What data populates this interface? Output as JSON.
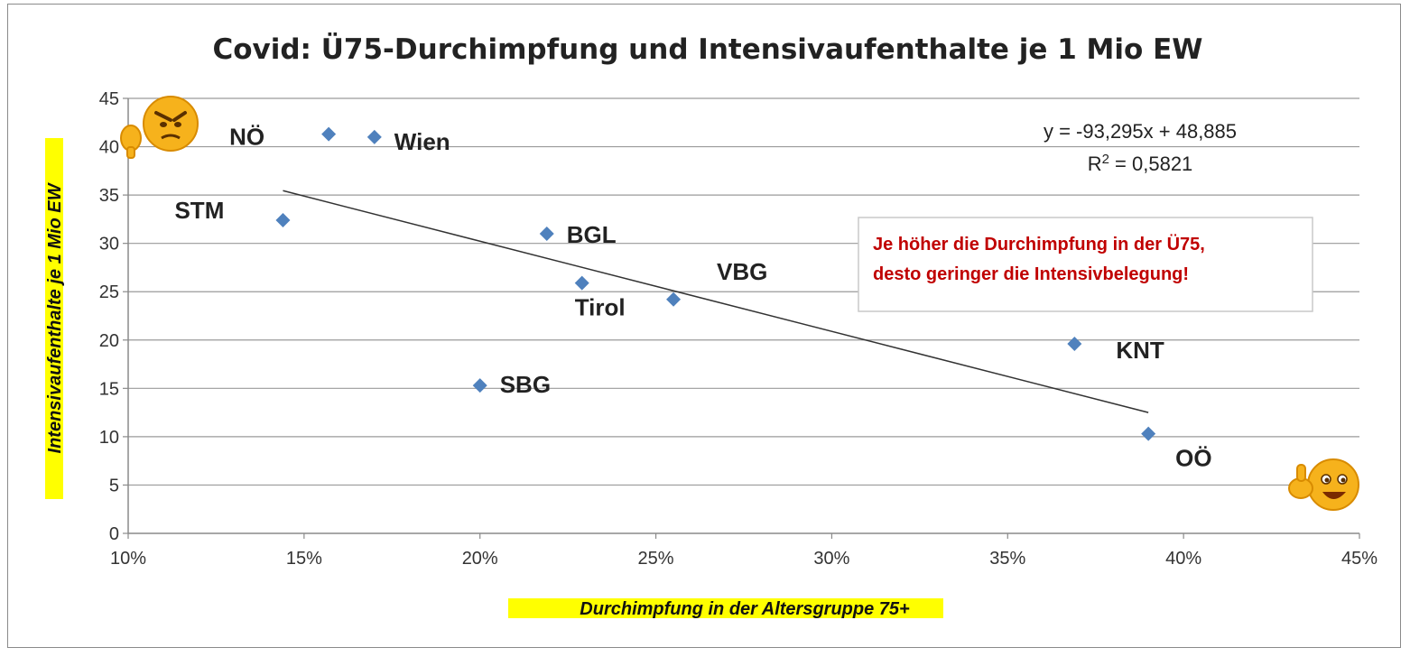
{
  "chart_data": {
    "type": "scatter",
    "title": "Covid: Ü75-Durchimpfung und Intensivaufenthalte je 1 Mio EW",
    "xlabel": "Durchimpfung in der Altersgruppe 75+",
    "ylabel": "Intensivaufenthalte je 1 Mio EW",
    "xlim": [
      0.1,
      0.45
    ],
    "ylim": [
      0,
      45
    ],
    "x_ticks": [
      0.1,
      0.15,
      0.2,
      0.25,
      0.3,
      0.35,
      0.4,
      0.45
    ],
    "x_tick_labels": [
      "10%",
      "15%",
      "20%",
      "25%",
      "30%",
      "35%",
      "40%",
      "45%"
    ],
    "y_ticks": [
      0,
      5,
      10,
      15,
      20,
      25,
      30,
      35,
      40,
      45
    ],
    "y_tick_labels": [
      "0",
      "5",
      "10",
      "15",
      "20",
      "25",
      "30",
      "35",
      "40",
      "45"
    ],
    "grid": "horizontal",
    "marker_color": "#4f81bd",
    "points": [
      {
        "label": "NÖ",
        "x": 0.157,
        "y": 41.3
      },
      {
        "label": "Wien",
        "x": 0.17,
        "y": 41.0
      },
      {
        "label": "STM",
        "x": 0.144,
        "y": 32.4
      },
      {
        "label": "BGL",
        "x": 0.219,
        "y": 31.0
      },
      {
        "label": "Tirol",
        "x": 0.229,
        "y": 25.9
      },
      {
        "label": "VBG",
        "x": 0.255,
        "y": 24.2
      },
      {
        "label": "SBG",
        "x": 0.2,
        "y": 15.3
      },
      {
        "label": "KNT",
        "x": 0.369,
        "y": 19.6
      },
      {
        "label": "OÖ",
        "x": 0.39,
        "y": 10.3
      }
    ],
    "trendline": {
      "slope": -93.295,
      "intercept": 48.885,
      "x_range": [
        0.144,
        0.39
      ],
      "equation_text": "y = -93,295x + 48,885",
      "r2_prefix": "R",
      "r2_sup": "2",
      "r2_value": " = 0,5821"
    },
    "annotation": {
      "line1": "Je höher die Durchimpfung  in der Ü75,",
      "line2": "desto geringer die Intensivbelegung!"
    },
    "label_highlight_color": "#ffff00",
    "note_color": "#c00000",
    "icons": [
      "angry-thumbs-down-emoji-icon",
      "happy-thumbs-up-emoji-icon"
    ]
  }
}
